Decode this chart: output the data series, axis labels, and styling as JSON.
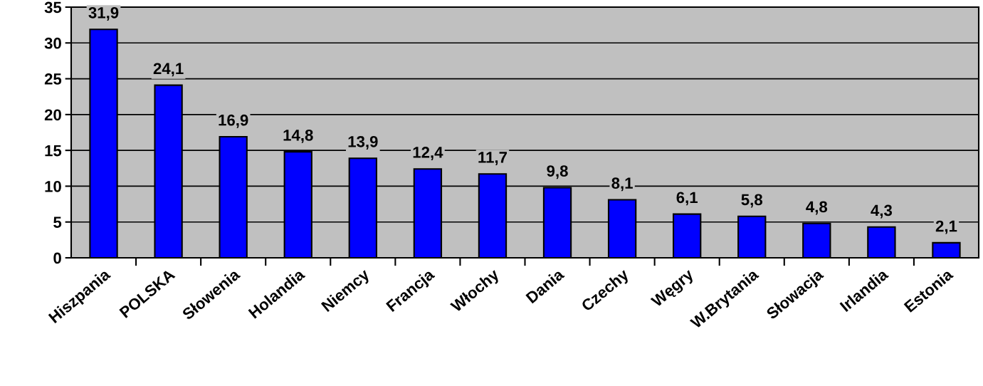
{
  "chart_data": {
    "type": "bar",
    "categories": [
      "Hiszpania",
      "POLSKA",
      "Słowenia",
      "Holandia",
      "Niemcy",
      "Francja",
      "Włochy",
      "Dania",
      "Czechy",
      "Węgry",
      "W.Brytania",
      "Słowacja",
      "Irlandia",
      "Estonia"
    ],
    "values": [
      31.9,
      24.1,
      16.9,
      14.8,
      13.9,
      12.4,
      11.7,
      9.8,
      8.1,
      6.1,
      5.8,
      4.8,
      4.3,
      2.1
    ],
    "value_labels": [
      "31,9",
      "24,1",
      "16,9",
      "14,8",
      "13,9",
      "12,4",
      "11,7",
      "9,8",
      "8,1",
      "6,1",
      "5,8",
      "4,8",
      "4,3",
      "2,1"
    ],
    "color": "#0000ff",
    "ylim": [
      0,
      35
    ],
    "yticks": [
      0,
      5,
      10,
      15,
      20,
      25,
      30,
      35
    ],
    "grid": "y",
    "legend": false
  }
}
